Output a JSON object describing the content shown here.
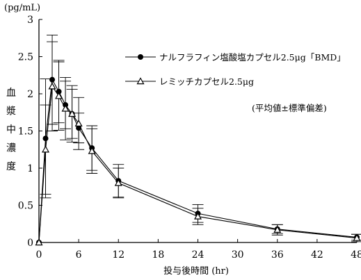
{
  "chart_data": {
    "type": "line",
    "title": "",
    "unit_label": "(pg/mL)",
    "xlabel": "投与後時間 (hr)",
    "ylabel": "血漿中濃度",
    "xlim": [
      0,
      48
    ],
    "ylim": [
      0,
      3
    ],
    "xticks": [
      0,
      6,
      12,
      18,
      24,
      30,
      36,
      42,
      48
    ],
    "yticks": [
      0,
      0.5,
      1,
      1.5,
      2,
      2.5,
      3
    ],
    "ytick_labels": [
      "0",
      "0.5",
      "1",
      "1.5",
      "2",
      "2.5",
      "3"
    ],
    "grid": false,
    "legend_position": "top-right",
    "note": "(平均値±標準偏差)",
    "series": [
      {
        "name": "ナルフラフィン塩酸塩カプセル2.5μg「BMD」",
        "marker": "filled-circle",
        "color": "#000000",
        "x": [
          0,
          1,
          2,
          3,
          4,
          5,
          6,
          8,
          12,
          24,
          36,
          48
        ],
        "y": [
          0,
          1.4,
          2.19,
          2.03,
          1.85,
          1.73,
          1.54,
          1.27,
          0.83,
          0.39,
          0.18,
          0.07
        ],
        "err": [
          0,
          0.8,
          0.6,
          0.42,
          0.32,
          0.33,
          0.2,
          0.3,
          0.22,
          0.12,
          0.06,
          0.04
        ]
      },
      {
        "name": "レミッチカプセル2.5μg",
        "marker": "open-triangle",
        "color": "#000000",
        "x": [
          0,
          1,
          2,
          3,
          4,
          5,
          6,
          8,
          12,
          24,
          36,
          48
        ],
        "y": [
          0,
          1.25,
          2.1,
          1.97,
          1.8,
          1.73,
          1.6,
          1.23,
          0.8,
          0.35,
          0.17,
          0.06
        ],
        "err": [
          0,
          0.6,
          0.6,
          0.46,
          0.42,
          0.38,
          0.35,
          0.3,
          0.2,
          0.11,
          0.07,
          0.05
        ]
      }
    ]
  }
}
